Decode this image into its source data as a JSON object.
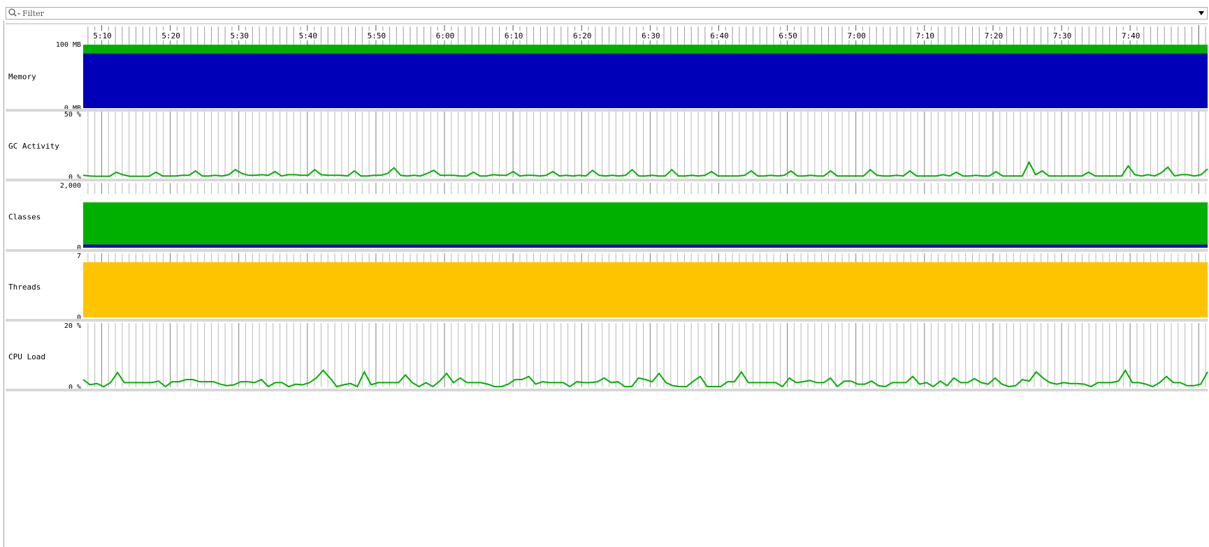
{
  "filter": {
    "placeholder": "Filter",
    "search_icon": "magnifier-icon",
    "dropdown_icon": "triangle-down-icon"
  },
  "time_axis": {
    "start_minutes": 307.3,
    "end_minutes": 471.3,
    "labels": [
      "5:10",
      "5:20",
      "5:30",
      "5:40",
      "5:50",
      "6:00",
      "6:10",
      "6:20",
      "6:30",
      "6:40",
      "6:50",
      "7:00",
      "7:10",
      "7:20",
      "7:30",
      "7:40"
    ],
    "label_minutes": [
      310,
      320,
      330,
      340,
      350,
      360,
      370,
      380,
      390,
      400,
      410,
      420,
      430,
      440,
      450,
      460
    ]
  },
  "colors": {
    "green": "#00b000",
    "blue": "#0000b8",
    "yellow": "#ffc400",
    "grid_major": "#808080",
    "grid_minor": "#b8b8b8",
    "separator": "#d8d8d8"
  },
  "chart_data": [
    {
      "type": "area",
      "title": "Memory",
      "y_max_label": "100 MB",
      "y_min_label": "0 MB",
      "ylim": [
        0,
        100
      ],
      "series": [
        {
          "color": "#00b000",
          "value": 100
        },
        {
          "color": "#0000b8",
          "value": 86
        }
      ]
    },
    {
      "type": "line",
      "title": "GC Activity",
      "y_max_label": "50 %",
      "y_min_label": "0 %",
      "ylim": [
        0,
        50
      ],
      "color": "#00b000",
      "values": [
        1.5,
        1.0,
        0.8,
        0.8,
        0.8,
        4.0,
        2.0,
        0.8,
        0.8,
        0.8,
        0.8,
        4.0,
        1.0,
        1.0,
        1.0,
        1.5,
        1.5,
        5.0,
        1.0,
        1.0,
        1.5,
        1.0,
        2.0,
        6.0,
        3.0,
        1.5,
        1.5,
        2.0,
        1.5,
        4.5,
        1.0,
        2.0,
        2.0,
        1.5,
        1.5,
        6.0,
        2.0,
        1.5,
        1.5,
        1.5,
        1.0,
        5.0,
        1.0,
        1.0,
        1.5,
        1.5,
        3.0,
        7.5,
        1.5,
        1.0,
        1.5,
        1.0,
        3.0,
        5.5,
        1.5,
        1.5,
        1.5,
        1.0,
        1.0,
        4.0,
        1.0,
        1.0,
        2.0,
        1.5,
        1.5,
        4.5,
        1.0,
        1.5,
        1.5,
        1.0,
        1.5,
        4.5,
        1.0,
        1.5,
        1.0,
        1.5,
        1.0,
        5.5,
        1.5,
        1.0,
        1.5,
        1.0,
        1.5,
        6.0,
        1.0,
        1.0,
        1.5,
        1.0,
        1.0,
        6.0,
        1.0,
        1.0,
        1.5,
        1.0,
        1.5,
        4.5,
        1.0,
        1.0,
        1.0,
        1.0,
        1.5,
        5.0,
        1.0,
        1.0,
        1.5,
        1.0,
        1.5,
        5.0,
        1.0,
        1.0,
        1.5,
        1.0,
        1.0,
        5.0,
        1.0,
        1.0,
        1.0,
        1.0,
        1.0,
        6.0,
        1.5,
        1.0,
        1.0,
        1.5,
        1.0,
        5.0,
        1.0,
        1.0,
        1.0,
        1.0,
        2.0,
        1.0,
        4.0,
        1.0,
        1.0,
        1.5,
        1.0,
        1.0,
        4.5,
        1.0,
        1.0,
        1.0,
        1.0,
        12.0,
        2.0,
        5.0,
        1.0,
        1.0,
        1.0,
        1.0,
        1.0,
        1.0,
        4.0,
        1.0,
        1.0,
        1.0,
        1.0,
        1.0,
        9.0,
        2.0,
        1.0,
        2.0,
        1.0,
        3.5,
        8.0,
        1.0,
        2.0,
        2.0,
        1.0,
        2.0,
        6.5
      ]
    },
    {
      "type": "area",
      "title": "Classes",
      "y_max_label": "2,000",
      "y_min_label": "0",
      "ylim": [
        0,
        2000
      ],
      "series": [
        {
          "color": "#00b000",
          "value": 1460
        },
        {
          "color": "#0000b8",
          "value": 100
        }
      ]
    },
    {
      "type": "area",
      "title": "Threads",
      "y_max_label": "7",
      "y_min_label": "0",
      "ylim": [
        0,
        7
      ],
      "series": [
        {
          "color": "#ffc400",
          "value": 6.3
        }
      ]
    },
    {
      "type": "line",
      "title": "CPU Load",
      "y_max_label": "20 %",
      "y_min_label": "0 %",
      "ylim": [
        0,
        20
      ],
      "color": "#00b000",
      "values": [
        2.5,
        0.8,
        1.2,
        0.2,
        1.5,
        4.8,
        1.5,
        1.5,
        1.5,
        1.5,
        1.5,
        2.0,
        0.2,
        1.8,
        1.8,
        2.5,
        2.5,
        1.8,
        1.8,
        1.8,
        1.0,
        0.5,
        0.8,
        1.8,
        1.8,
        1.5,
        2.5,
        0.2,
        1.5,
        1.5,
        0.2,
        1.0,
        0.8,
        1.5,
        3.0,
        5.5,
        3.0,
        0.2,
        0.8,
        1.2,
        0.2,
        5.0,
        0.8,
        1.5,
        1.5,
        1.5,
        1.5,
        4.0,
        1.5,
        0.2,
        1.5,
        0.2,
        2.0,
        4.5,
        1.5,
        3.0,
        1.5,
        1.5,
        1.5,
        1.0,
        0.2,
        0.2,
        1.0,
        2.5,
        2.5,
        3.5,
        1.0,
        1.8,
        1.5,
        1.5,
        1.5,
        0.2,
        1.8,
        1.5,
        1.5,
        1.8,
        3.0,
        1.5,
        1.8,
        0.2,
        0.2,
        3.0,
        2.5,
        1.8,
        4.5,
        1.5,
        0.5,
        0.2,
        0.2,
        2.0,
        3.5,
        0.2,
        0.2,
        0.2,
        1.8,
        1.8,
        5.0,
        1.5,
        1.5,
        1.5,
        1.5,
        1.5,
        0.2,
        3.0,
        1.5,
        1.8,
        2.2,
        1.5,
        1.5,
        3.0,
        0.2,
        2.0,
        2.0,
        1.0,
        1.0,
        2.0,
        0.5,
        0.2,
        1.5,
        1.5,
        1.5,
        3.5,
        1.0,
        1.5,
        0.2,
        2.0,
        0.5,
        3.0,
        1.5,
        1.5,
        2.8,
        1.5,
        1.0,
        3.0,
        1.0,
        0.2,
        0.5,
        2.5,
        2.0,
        5.0,
        3.0,
        1.5,
        1.0,
        1.5,
        1.2,
        1.2,
        1.0,
        0.2,
        1.5,
        1.5,
        1.5,
        2.0,
        5.5,
        1.5,
        1.5,
        1.0,
        0.2,
        1.5,
        3.5,
        1.5,
        1.5,
        0.5,
        0.5,
        1.0,
        5.0
      ]
    }
  ]
}
